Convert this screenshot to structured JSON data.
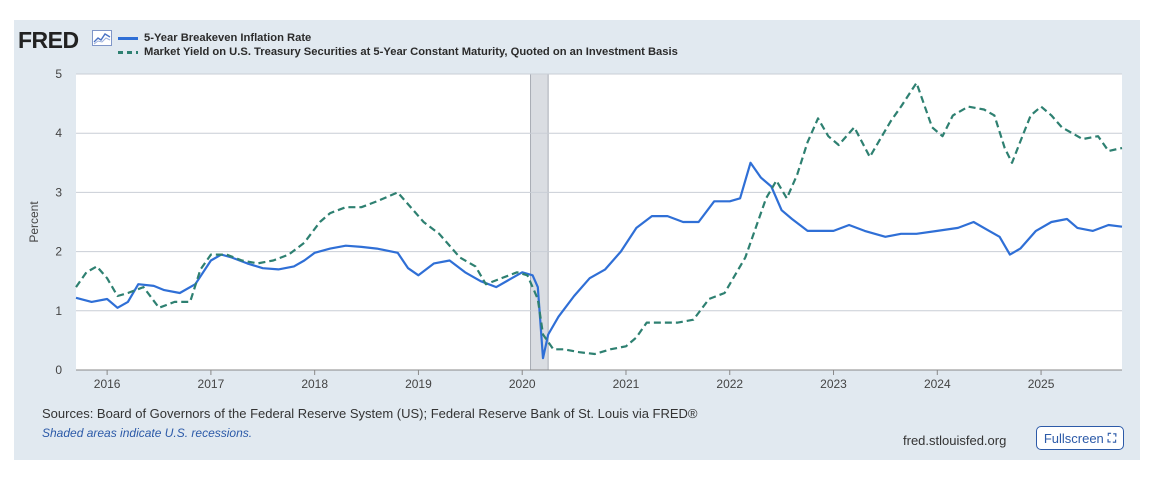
{
  "brand": {
    "logo_text": "FRED"
  },
  "legend": [
    {
      "label": "5-Year Breakeven Inflation Rate",
      "color": "#2f6fd6",
      "style": "solid"
    },
    {
      "label": "Market Yield on U.S. Treasury Securities at 5-Year Constant Maturity, Quoted on an Investment Basis",
      "color": "#2e8071",
      "style": "dashed"
    }
  ],
  "footer": {
    "sources": "Sources: Board of Governors of the Federal Reserve System (US); Federal Reserve Bank of St. Louis via FRED®",
    "note": "Shaded areas indicate U.S. recessions.",
    "site": "fred.stlouisfed.org",
    "fullscreen_label": "Fullscreen"
  },
  "chart_data": {
    "type": "line",
    "ylabel": "Percent",
    "xlabel": "",
    "ylim": [
      0,
      5
    ],
    "xlim": [
      2015.7,
      2025.78
    ],
    "y_ticks": [
      0,
      1,
      2,
      3,
      4,
      5
    ],
    "x_ticks": [
      "2016",
      "2017",
      "2018",
      "2019",
      "2020",
      "2021",
      "2022",
      "2023",
      "2024",
      "2025"
    ],
    "grid": true,
    "recession_shading": [
      {
        "start": 2020.08,
        "end": 2020.25
      }
    ],
    "series": [
      {
        "name": "5-Year Breakeven Inflation Rate",
        "color": "#2f6fd6",
        "style": "solid",
        "points": [
          [
            2015.7,
            1.22
          ],
          [
            2015.85,
            1.15
          ],
          [
            2016.0,
            1.2
          ],
          [
            2016.1,
            1.05
          ],
          [
            2016.2,
            1.15
          ],
          [
            2016.3,
            1.45
          ],
          [
            2016.45,
            1.42
          ],
          [
            2016.55,
            1.35
          ],
          [
            2016.7,
            1.3
          ],
          [
            2016.85,
            1.45
          ],
          [
            2017.0,
            1.85
          ],
          [
            2017.1,
            1.95
          ],
          [
            2017.2,
            1.9
          ],
          [
            2017.35,
            1.8
          ],
          [
            2017.5,
            1.72
          ],
          [
            2017.65,
            1.7
          ],
          [
            2017.8,
            1.75
          ],
          [
            2017.9,
            1.85
          ],
          [
            2018.0,
            1.98
          ],
          [
            2018.15,
            2.05
          ],
          [
            2018.3,
            2.1
          ],
          [
            2018.45,
            2.08
          ],
          [
            2018.6,
            2.05
          ],
          [
            2018.8,
            1.98
          ],
          [
            2018.9,
            1.72
          ],
          [
            2019.0,
            1.6
          ],
          [
            2019.15,
            1.8
          ],
          [
            2019.3,
            1.85
          ],
          [
            2019.45,
            1.65
          ],
          [
            2019.6,
            1.5
          ],
          [
            2019.75,
            1.4
          ],
          [
            2019.9,
            1.55
          ],
          [
            2020.0,
            1.65
          ],
          [
            2020.1,
            1.6
          ],
          [
            2020.15,
            1.4
          ],
          [
            2020.2,
            0.2
          ],
          [
            2020.25,
            0.6
          ],
          [
            2020.35,
            0.9
          ],
          [
            2020.5,
            1.25
          ],
          [
            2020.65,
            1.55
          ],
          [
            2020.8,
            1.7
          ],
          [
            2020.95,
            2.0
          ],
          [
            2021.1,
            2.4
          ],
          [
            2021.25,
            2.6
          ],
          [
            2021.4,
            2.6
          ],
          [
            2021.55,
            2.5
          ],
          [
            2021.7,
            2.5
          ],
          [
            2021.85,
            2.85
          ],
          [
            2022.0,
            2.85
          ],
          [
            2022.1,
            2.9
          ],
          [
            2022.2,
            3.5
          ],
          [
            2022.3,
            3.25
          ],
          [
            2022.4,
            3.1
          ],
          [
            2022.5,
            2.7
          ],
          [
            2022.6,
            2.55
          ],
          [
            2022.75,
            2.35
          ],
          [
            2022.9,
            2.35
          ],
          [
            2023.0,
            2.35
          ],
          [
            2023.15,
            2.45
          ],
          [
            2023.3,
            2.35
          ],
          [
            2023.5,
            2.25
          ],
          [
            2023.65,
            2.3
          ],
          [
            2023.8,
            2.3
          ],
          [
            2024.0,
            2.35
          ],
          [
            2024.2,
            2.4
          ],
          [
            2024.35,
            2.5
          ],
          [
            2024.5,
            2.35
          ],
          [
            2024.6,
            2.25
          ],
          [
            2024.7,
            1.95
          ],
          [
            2024.8,
            2.05
          ],
          [
            2024.95,
            2.35
          ],
          [
            2025.1,
            2.5
          ],
          [
            2025.25,
            2.55
          ],
          [
            2025.35,
            2.4
          ],
          [
            2025.5,
            2.35
          ],
          [
            2025.65,
            2.45
          ],
          [
            2025.78,
            2.42
          ]
        ]
      },
      {
        "name": "Market Yield on U.S. Treasury Securities at 5-Year Constant Maturity, Quoted on an Investment Basis",
        "color": "#2e8071",
        "style": "dashed",
        "points": [
          [
            2015.7,
            1.4
          ],
          [
            2015.8,
            1.65
          ],
          [
            2015.9,
            1.75
          ],
          [
            2016.0,
            1.55
          ],
          [
            2016.1,
            1.25
          ],
          [
            2016.2,
            1.3
          ],
          [
            2016.35,
            1.4
          ],
          [
            2016.5,
            1.05
          ],
          [
            2016.65,
            1.15
          ],
          [
            2016.8,
            1.15
          ],
          [
            2016.9,
            1.7
          ],
          [
            2017.0,
            1.95
          ],
          [
            2017.15,
            1.95
          ],
          [
            2017.3,
            1.85
          ],
          [
            2017.45,
            1.8
          ],
          [
            2017.6,
            1.85
          ],
          [
            2017.75,
            1.95
          ],
          [
            2017.9,
            2.15
          ],
          [
            2018.05,
            2.5
          ],
          [
            2018.15,
            2.65
          ],
          [
            2018.3,
            2.75
          ],
          [
            2018.45,
            2.75
          ],
          [
            2018.6,
            2.85
          ],
          [
            2018.8,
            3.0
          ],
          [
            2018.95,
            2.7
          ],
          [
            2019.05,
            2.5
          ],
          [
            2019.2,
            2.3
          ],
          [
            2019.4,
            1.9
          ],
          [
            2019.55,
            1.75
          ],
          [
            2019.65,
            1.45
          ],
          [
            2019.8,
            1.55
          ],
          [
            2019.95,
            1.65
          ],
          [
            2020.05,
            1.6
          ],
          [
            2020.15,
            1.2
          ],
          [
            2020.2,
            0.6
          ],
          [
            2020.3,
            0.35
          ],
          [
            2020.4,
            0.35
          ],
          [
            2020.55,
            0.3
          ],
          [
            2020.7,
            0.27
          ],
          [
            2020.85,
            0.35
          ],
          [
            2021.0,
            0.4
          ],
          [
            2021.1,
            0.55
          ],
          [
            2021.2,
            0.8
          ],
          [
            2021.35,
            0.8
          ],
          [
            2021.5,
            0.8
          ],
          [
            2021.65,
            0.85
          ],
          [
            2021.8,
            1.2
          ],
          [
            2021.95,
            1.3
          ],
          [
            2022.05,
            1.6
          ],
          [
            2022.15,
            1.9
          ],
          [
            2022.25,
            2.4
          ],
          [
            2022.35,
            2.9
          ],
          [
            2022.45,
            3.2
          ],
          [
            2022.55,
            2.9
          ],
          [
            2022.65,
            3.3
          ],
          [
            2022.75,
            3.85
          ],
          [
            2022.85,
            4.25
          ],
          [
            2022.95,
            3.95
          ],
          [
            2023.05,
            3.8
          ],
          [
            2023.2,
            4.1
          ],
          [
            2023.35,
            3.6
          ],
          [
            2023.45,
            3.9
          ],
          [
            2023.55,
            4.2
          ],
          [
            2023.65,
            4.45
          ],
          [
            2023.8,
            4.85
          ],
          [
            2023.95,
            4.1
          ],
          [
            2024.05,
            3.95
          ],
          [
            2024.15,
            4.3
          ],
          [
            2024.3,
            4.45
          ],
          [
            2024.45,
            4.4
          ],
          [
            2024.55,
            4.3
          ],
          [
            2024.65,
            3.75
          ],
          [
            2024.72,
            3.5
          ],
          [
            2024.82,
            3.95
          ],
          [
            2024.9,
            4.3
          ],
          [
            2025.0,
            4.45
          ],
          [
            2025.1,
            4.3
          ],
          [
            2025.2,
            4.1
          ],
          [
            2025.3,
            4.0
          ],
          [
            2025.4,
            3.9
          ],
          [
            2025.55,
            3.95
          ],
          [
            2025.65,
            3.7
          ],
          [
            2025.78,
            3.75
          ]
        ]
      }
    ]
  }
}
